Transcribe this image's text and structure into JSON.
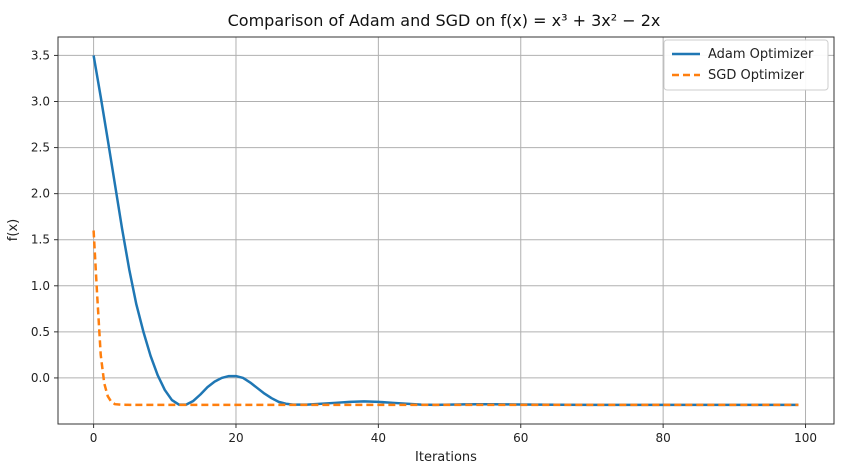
{
  "chart_data": {
    "type": "line",
    "title": "Comparison of Adam and SGD on f(x) = x³ + 3x² − 2x",
    "xlabel": "Iterations",
    "ylabel": "f(x)",
    "xlim": [
      -5,
      104
    ],
    "ylim": [
      -0.5,
      3.7
    ],
    "x_ticks": [
      0,
      20,
      40,
      60,
      80,
      100
    ],
    "y_ticks": [
      0.0,
      0.5,
      1.0,
      1.5,
      2.0,
      2.5,
      3.0,
      3.5
    ],
    "x_tick_labels": [
      "0",
      "20",
      "40",
      "60",
      "80",
      "100"
    ],
    "y_tick_labels": [
      "0.0",
      "0.5",
      "1.0",
      "1.5",
      "2.0",
      "2.5",
      "3.0",
      "3.5"
    ],
    "grid": true,
    "legend_position": "top-right",
    "series": [
      {
        "name": "Adam Optimizer",
        "color": "#1f77b4",
        "dash": "solid",
        "x": [
          0,
          1,
          2,
          3,
          4,
          5,
          6,
          7,
          8,
          9,
          10,
          11,
          12,
          13,
          14,
          15,
          16,
          17,
          18,
          19,
          20,
          21,
          22,
          23,
          24,
          25,
          26,
          27,
          28,
          29,
          30,
          32,
          34,
          36,
          38,
          40,
          42,
          44,
          46,
          48,
          50,
          52,
          54,
          56,
          58,
          60,
          65,
          70,
          75,
          80,
          85,
          90,
          95,
          99
        ],
        "y": [
          3.5,
          3.05,
          2.58,
          2.1,
          1.62,
          1.18,
          0.8,
          0.5,
          0.24,
          0.03,
          -0.13,
          -0.24,
          -0.29,
          -0.29,
          -0.25,
          -0.18,
          -0.1,
          -0.04,
          0.0,
          0.02,
          0.02,
          0.0,
          -0.05,
          -0.11,
          -0.17,
          -0.22,
          -0.26,
          -0.28,
          -0.29,
          -0.29,
          -0.29,
          -0.28,
          -0.27,
          -0.26,
          -0.255,
          -0.26,
          -0.27,
          -0.28,
          -0.29,
          -0.292,
          -0.29,
          -0.287,
          -0.285,
          -0.285,
          -0.287,
          -0.289,
          -0.291,
          -0.292,
          -0.292,
          -0.292,
          -0.292,
          -0.292,
          -0.292,
          -0.292
        ]
      },
      {
        "name": "SGD Optimizer",
        "color": "#ff7f0e",
        "dash": "dashed",
        "x": [
          0,
          0.5,
          1,
          1.5,
          2,
          2.5,
          3,
          4,
          5,
          10,
          20,
          40,
          60,
          80,
          99
        ],
        "y": [
          1.6,
          0.9,
          0.25,
          -0.06,
          -0.2,
          -0.26,
          -0.285,
          -0.291,
          -0.292,
          -0.292,
          -0.292,
          -0.292,
          -0.292,
          -0.292,
          -0.292
        ]
      }
    ]
  }
}
